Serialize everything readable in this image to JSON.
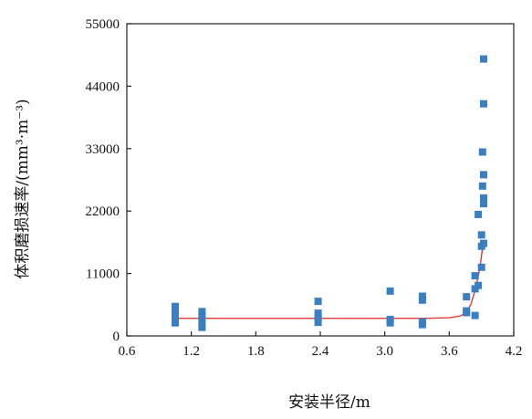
{
  "chart_data": {
    "type": "scatter",
    "title": "",
    "xlabel": "安装半径/m",
    "ylabel": "体积磨损速率/(mm³·m⁻³)",
    "xlim": [
      0.6,
      4.2
    ],
    "ylim": [
      0,
      55000
    ],
    "xticks": [
      "0.6",
      "1.2",
      "1.8",
      "2.4",
      "3.0",
      "3.6",
      "4.2"
    ],
    "yticks": [
      "0",
      "11000",
      "22000",
      "33000",
      "44000",
      "55000"
    ],
    "grid": false,
    "legend": "none",
    "marker_color": "#3a7fc2",
    "line_color": "#e8393a",
    "points": [
      {
        "x": 1.05,
        "y": 5200
      },
      {
        "x": 1.05,
        "y": 4400
      },
      {
        "x": 1.05,
        "y": 3700
      },
      {
        "x": 1.05,
        "y": 3000
      },
      {
        "x": 1.05,
        "y": 2300
      },
      {
        "x": 1.3,
        "y": 4300
      },
      {
        "x": 1.3,
        "y": 3600
      },
      {
        "x": 1.3,
        "y": 2900
      },
      {
        "x": 1.3,
        "y": 2200
      },
      {
        "x": 1.3,
        "y": 1500
      },
      {
        "x": 2.38,
        "y": 6100
      },
      {
        "x": 2.38,
        "y": 4000
      },
      {
        "x": 2.38,
        "y": 3200
      },
      {
        "x": 2.38,
        "y": 2400
      },
      {
        "x": 3.05,
        "y": 7900
      },
      {
        "x": 3.05,
        "y": 2900
      },
      {
        "x": 3.05,
        "y": 2300
      },
      {
        "x": 3.35,
        "y": 7000
      },
      {
        "x": 3.35,
        "y": 6300
      },
      {
        "x": 3.35,
        "y": 2500
      },
      {
        "x": 3.35,
        "y": 2000
      },
      {
        "x": 3.76,
        "y": 6900
      },
      {
        "x": 3.76,
        "y": 4400
      },
      {
        "x": 3.76,
        "y": 4100
      },
      {
        "x": 3.84,
        "y": 10600
      },
      {
        "x": 3.84,
        "y": 8300
      },
      {
        "x": 3.84,
        "y": 3600
      },
      {
        "x": 3.87,
        "y": 8900
      },
      {
        "x": 3.87,
        "y": 21400
      },
      {
        "x": 3.9,
        "y": 17800
      },
      {
        "x": 3.9,
        "y": 15800
      },
      {
        "x": 3.9,
        "y": 12100
      },
      {
        "x": 3.91,
        "y": 32400
      },
      {
        "x": 3.91,
        "y": 26400
      },
      {
        "x": 3.92,
        "y": 48800
      },
      {
        "x": 3.92,
        "y": 40900
      },
      {
        "x": 3.92,
        "y": 28400
      },
      {
        "x": 3.92,
        "y": 24300
      },
      {
        "x": 3.92,
        "y": 23300
      },
      {
        "x": 3.92,
        "y": 16300
      }
    ],
    "fit_curve": [
      {
        "x": 1.05,
        "y": 3100
      },
      {
        "x": 1.5,
        "y": 3100
      },
      {
        "x": 2.0,
        "y": 3100
      },
      {
        "x": 2.5,
        "y": 3100
      },
      {
        "x": 3.0,
        "y": 3100
      },
      {
        "x": 3.4,
        "y": 3100
      },
      {
        "x": 3.6,
        "y": 3200
      },
      {
        "x": 3.7,
        "y": 3500
      },
      {
        "x": 3.75,
        "y": 4000
      },
      {
        "x": 3.8,
        "y": 5500
      },
      {
        "x": 3.84,
        "y": 8000
      },
      {
        "x": 3.87,
        "y": 10500
      },
      {
        "x": 3.89,
        "y": 12700
      },
      {
        "x": 3.91,
        "y": 15500
      },
      {
        "x": 3.92,
        "y": 16500
      }
    ]
  }
}
